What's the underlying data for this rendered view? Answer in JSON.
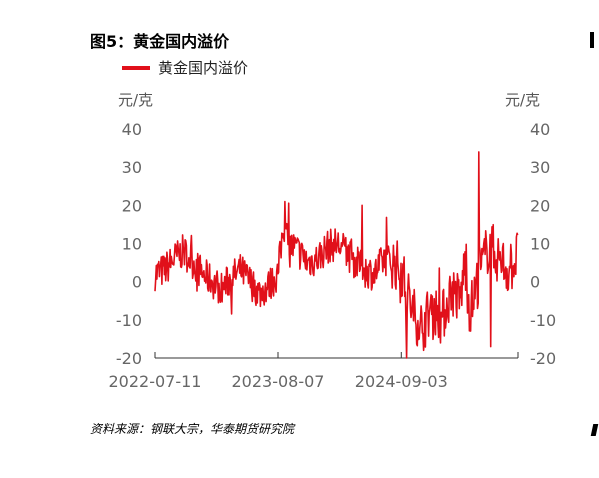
{
  "title": "图5：黄金国内溢价",
  "source": "资料来源：钢联大宗，华泰期货研究院",
  "colors": {
    "series": "#e1101a",
    "axis": "#333333",
    "text": "#666666"
  },
  "chart_data": {
    "type": "line",
    "title": "图5：黄金国内溢价",
    "y_unit_left": "元/克",
    "y_unit_right": "元/克",
    "ylim": [
      -20,
      40
    ],
    "yticks": [
      -20,
      -10,
      0,
      10,
      20,
      30,
      40
    ],
    "x_tick_labels": [
      "2022-07-11",
      "2023-08-07",
      "2024-09-03"
    ],
    "xlim": [
      "2022-07-11",
      "2025-09-10"
    ],
    "grid": false,
    "legend_position": "top-left",
    "series": [
      {
        "name": "黄金国内溢价",
        "x": [
          "2022-07-11",
          "2022-08-10",
          "2022-09-10",
          "2022-10-10",
          "2022-11-10",
          "2022-12-10",
          "2023-01-10",
          "2023-02-10",
          "2023-03-10",
          "2023-04-10",
          "2023-05-10",
          "2023-06-10",
          "2023-07-10",
          "2023-08-07",
          "2023-08-25",
          "2023-09-10",
          "2023-10-10",
          "2023-11-10",
          "2023-12-10",
          "2024-01-10",
          "2024-02-10",
          "2024-03-10",
          "2024-04-10",
          "2024-05-10",
          "2024-06-10",
          "2024-07-10",
          "2024-08-10",
          "2024-09-03",
          "2024-10-10",
          "2024-11-10",
          "2024-12-10",
          "2025-01-10",
          "2025-02-10",
          "2025-03-10",
          "2025-03-25",
          "2025-04-10",
          "2025-05-10",
          "2025-06-10",
          "2025-07-10",
          "2025-08-10",
          "2025-09-10"
        ],
        "values": [
          2,
          3,
          6,
          8,
          5,
          2,
          0,
          -2,
          1,
          3,
          0,
          -3,
          -1,
          2,
          15,
          10,
          8,
          5,
          6,
          9,
          10,
          8,
          5,
          3,
          2,
          6,
          5,
          3,
          -8,
          -12,
          -6,
          -10,
          -2,
          -5,
          5,
          -8,
          2,
          10,
          6,
          3,
          7
        ]
      }
    ]
  }
}
